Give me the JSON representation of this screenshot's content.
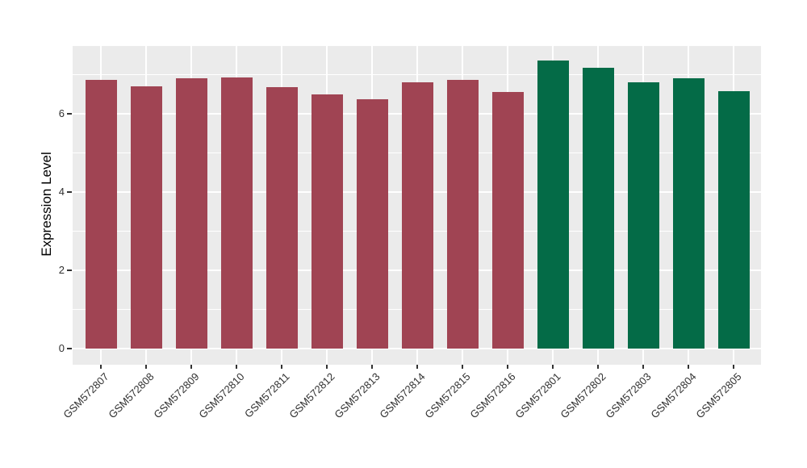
{
  "figure": {
    "background": "#FFFFFF",
    "panel_background": "#EBEBEB",
    "gridline_color": "#FFFFFF",
    "axis_text_color": "#303030",
    "tick_mark_color": "#333333"
  },
  "chart_data": {
    "type": "bar",
    "title": "",
    "xlabel": "",
    "ylabel": "Expression Level",
    "categories": [
      "GSM572807",
      "GSM572808",
      "GSM572809",
      "GSM572810",
      "GSM572811",
      "GSM572812",
      "GSM572813",
      "GSM572814",
      "GSM572815",
      "GSM572816",
      "GSM572801",
      "GSM572802",
      "GSM572803",
      "GSM572804",
      "GSM572805"
    ],
    "values": [
      6.87,
      6.71,
      6.91,
      6.92,
      6.69,
      6.5,
      6.38,
      6.81,
      6.86,
      6.55,
      7.37,
      7.17,
      6.8,
      6.9,
      6.58
    ],
    "bar_colors": [
      "#A04453",
      "#A04453",
      "#A04453",
      "#A04453",
      "#A04453",
      "#A04453",
      "#A04453",
      "#A04453",
      "#A04453",
      "#A04453",
      "#046B47",
      "#046B47",
      "#046B47",
      "#046B47",
      "#046B47"
    ],
    "color_legend": {
      "maroon_group": {
        "color": "#A04453",
        "labels": [
          "GSM572807",
          "GSM572808",
          "GSM572809",
          "GSM572810",
          "GSM572811",
          "GSM572812",
          "GSM572813",
          "GSM572814",
          "GSM572815",
          "GSM572816"
        ]
      },
      "green_group": {
        "color": "#046B47",
        "labels": [
          "GSM572801",
          "GSM572802",
          "GSM572803",
          "GSM572804",
          "GSM572805"
        ]
      }
    },
    "y_major_ticks": [
      0,
      2,
      4,
      6
    ],
    "y_minor_ticks": [
      1,
      3,
      5,
      7
    ],
    "ylim": [
      -0.41,
      7.73
    ],
    "grid": "on",
    "legend": "none",
    "x_tick_rotation_deg": 45
  }
}
